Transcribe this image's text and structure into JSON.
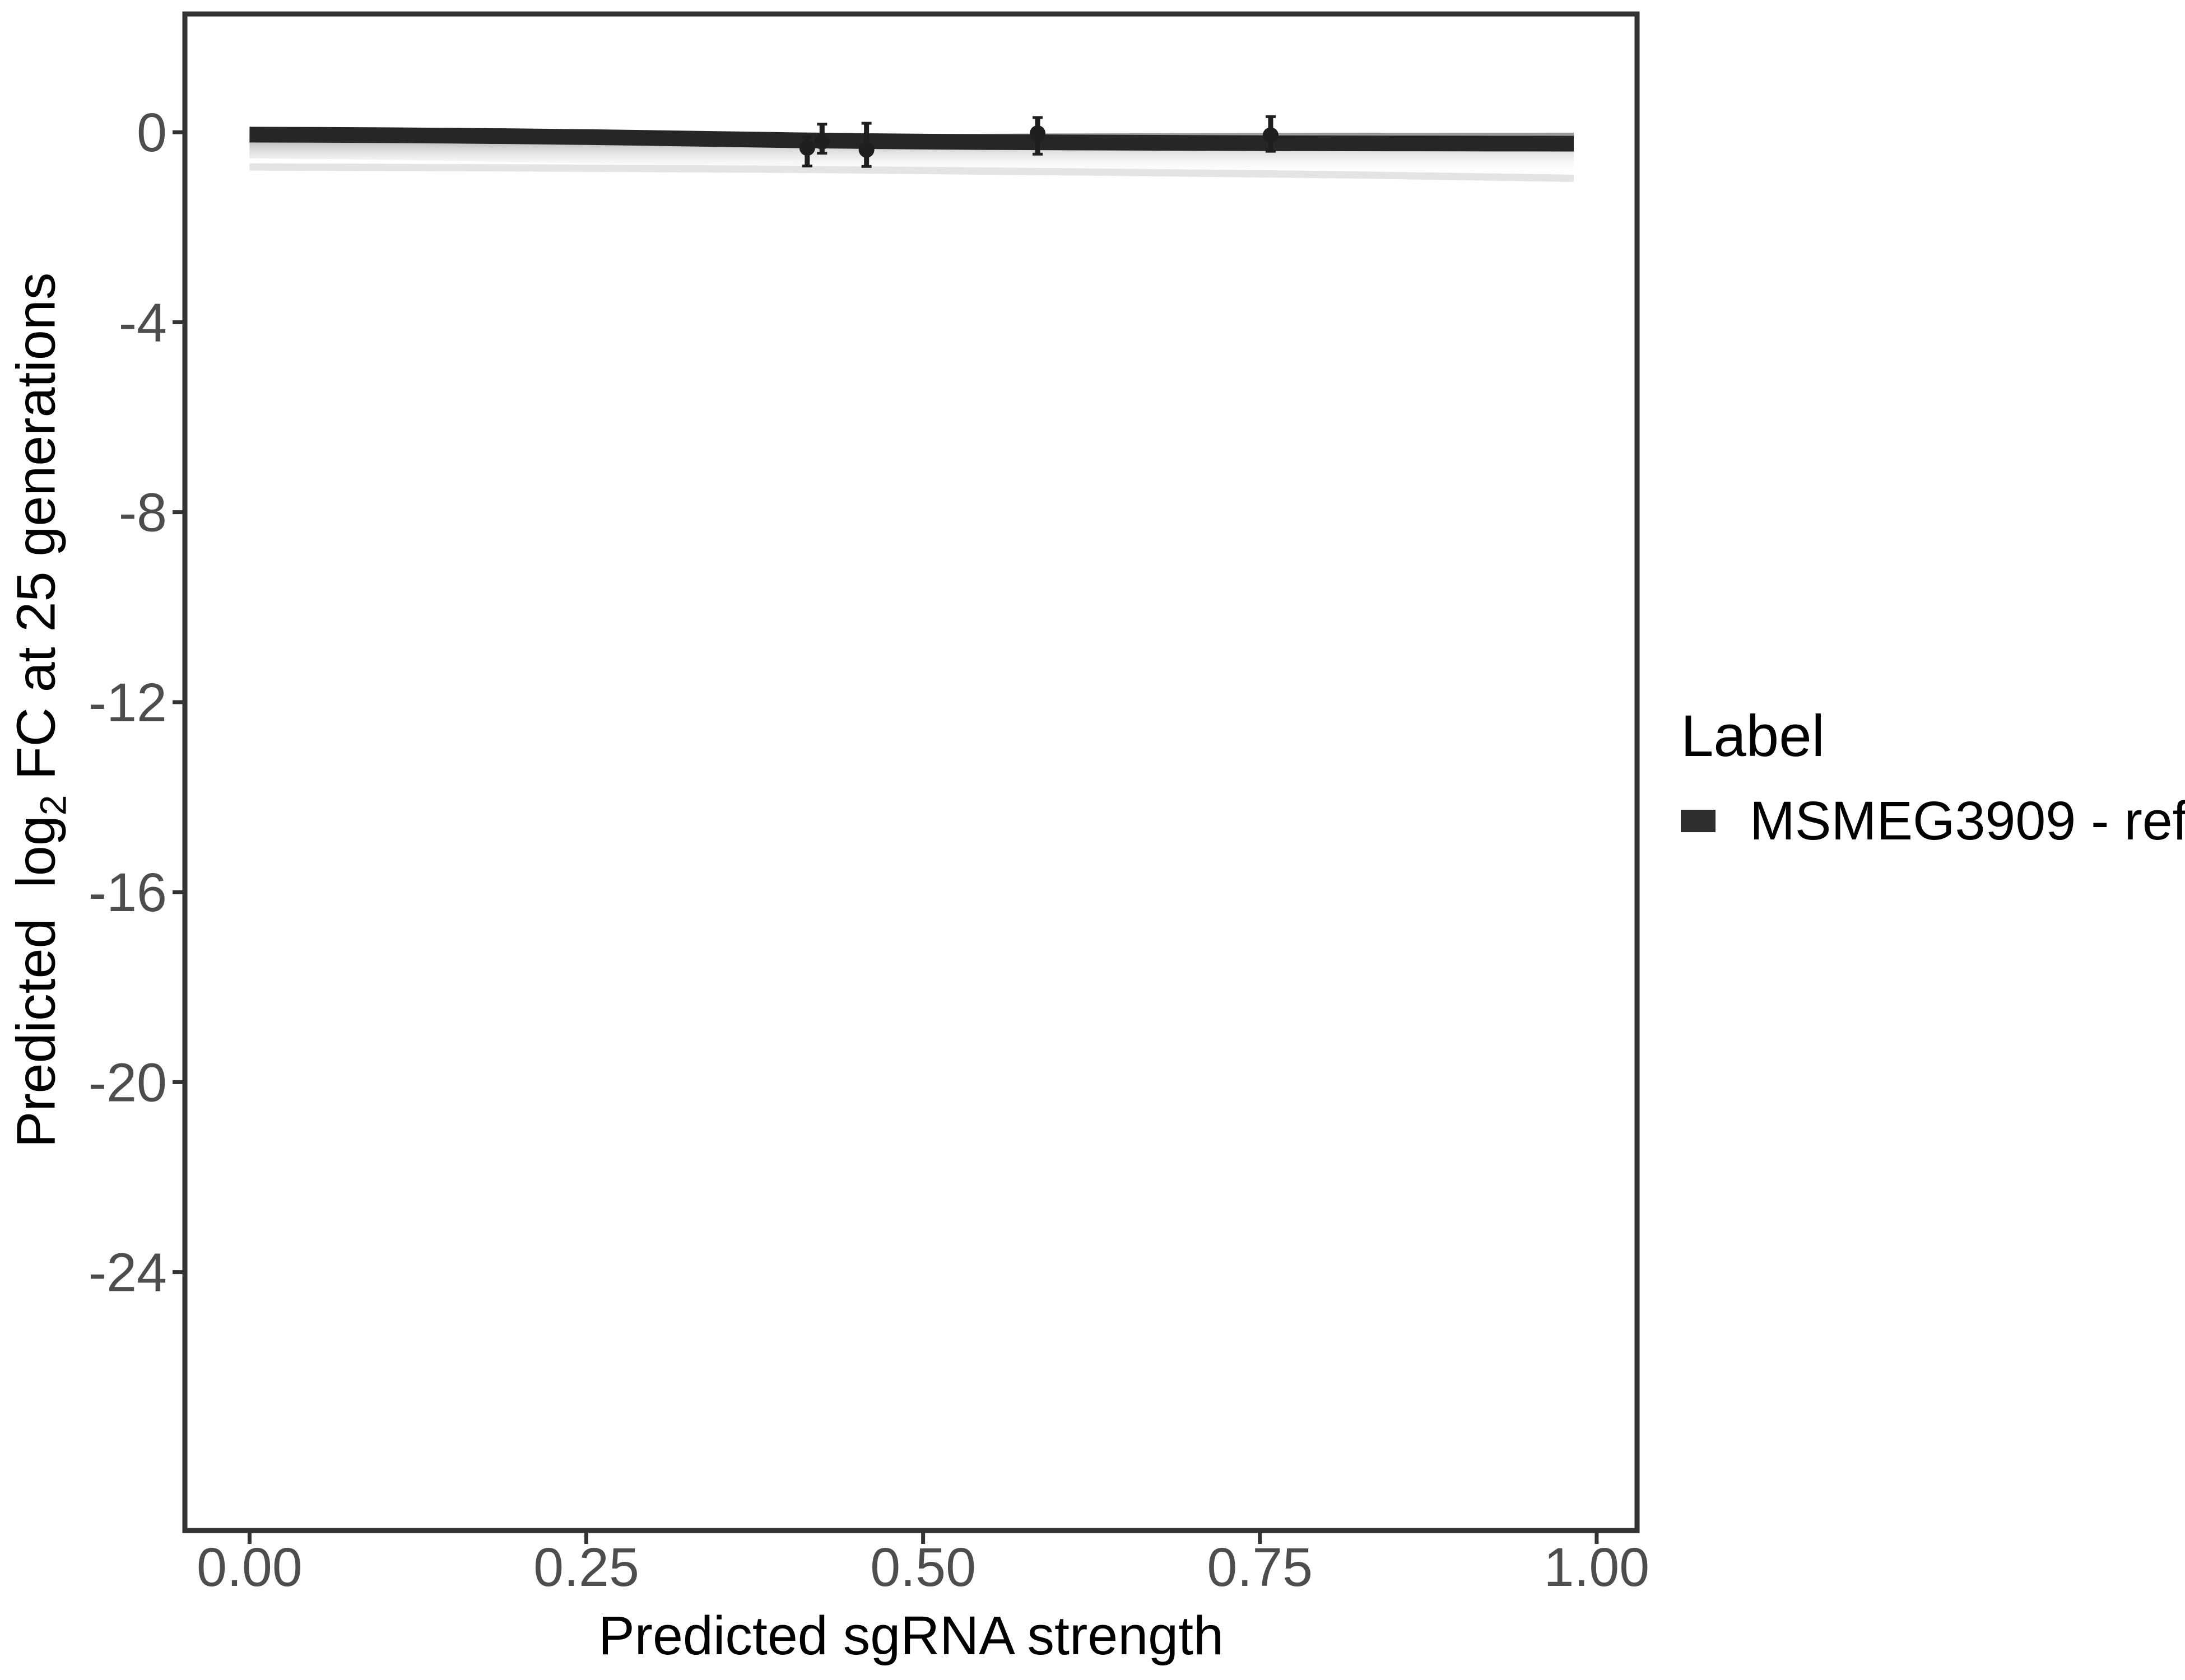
{
  "figure": {
    "background": "#ffffff"
  },
  "y_axis": {
    "title": {
      "pre": "Predicted  log",
      "sub": "2",
      "post": " FC at 25 generations"
    },
    "ticks": [
      {
        "label": "0",
        "value": 0
      },
      {
        "label": "-4",
        "value": -4
      },
      {
        "label": "-8",
        "value": -8
      },
      {
        "label": "-12",
        "value": -12
      },
      {
        "label": "-16",
        "value": -16
      },
      {
        "label": "-20",
        "value": -20
      },
      {
        "label": "-24",
        "value": -24
      }
    ]
  },
  "x_axis": {
    "title": "Predicted sgRNA strength",
    "ticks": [
      {
        "label": "0.00",
        "value": 0.0
      },
      {
        "label": "0.25",
        "value": 0.25
      },
      {
        "label": "0.50",
        "value": 0.5
      },
      {
        "label": "0.75",
        "value": 0.75
      },
      {
        "label": "1.00",
        "value": 1.0
      }
    ]
  },
  "legend": {
    "title": "Label",
    "items": [
      {
        "label": "MSMEG3909 - ref",
        "color": "#2e2e2e"
      }
    ]
  },
  "chart_data": {
    "type": "line",
    "title": "",
    "xlabel": "Predicted sgRNA strength",
    "ylabel": "Predicted log2 FC at 25 generations",
    "xlim": [
      -0.048,
      1.03
    ],
    "ylim": [
      2.49,
      -29.44
    ],
    "grid": false,
    "legend_position": "right",
    "axis_color": "#333333",
    "tick_label_color": "#4d4d4d",
    "series": [
      {
        "name": "MSMEG3909 - ref",
        "color": "#262626",
        "stroke_width": 28,
        "points": [
          [
            0.0,
            -0.05
          ],
          [
            0.05,
            -0.055
          ],
          [
            0.1,
            -0.062
          ],
          [
            0.15,
            -0.072
          ],
          [
            0.2,
            -0.085
          ],
          [
            0.25,
            -0.102
          ],
          [
            0.3,
            -0.122
          ],
          [
            0.35,
            -0.144
          ],
          [
            0.4,
            -0.165
          ],
          [
            0.45,
            -0.183
          ],
          [
            0.5,
            -0.197
          ],
          [
            0.55,
            -0.207
          ],
          [
            0.6,
            -0.214
          ],
          [
            0.65,
            -0.22
          ],
          [
            0.7,
            -0.225
          ],
          [
            0.75,
            -0.229
          ],
          [
            0.8,
            -0.232
          ],
          [
            0.85,
            -0.235
          ],
          [
            0.9,
            -0.237
          ],
          [
            0.95,
            -0.239
          ],
          [
            0.983,
            -0.24
          ]
        ]
      }
    ],
    "ribbon": {
      "upper": [
        [
          0.0,
          -0.04
        ],
        [
          0.1,
          -0.05
        ],
        [
          0.2,
          -0.058
        ],
        [
          0.3,
          -0.068
        ],
        [
          0.4,
          -0.075
        ],
        [
          0.5,
          -0.04
        ],
        [
          0.6,
          -0.025
        ],
        [
          0.7,
          -0.018
        ],
        [
          0.8,
          -0.013
        ],
        [
          0.9,
          -0.01
        ],
        [
          0.983,
          -0.008
        ]
      ],
      "lower": [
        [
          0.0,
          -0.55
        ],
        [
          0.1,
          -0.58
        ],
        [
          0.2,
          -0.63
        ],
        [
          0.3,
          -0.68
        ],
        [
          0.4,
          -0.73
        ],
        [
          0.5,
          -0.76
        ],
        [
          0.6,
          -0.79
        ],
        [
          0.7,
          -0.82
        ],
        [
          0.8,
          -0.86
        ],
        [
          0.9,
          -0.9
        ],
        [
          0.983,
          -0.94
        ]
      ],
      "gradient": [
        {
          "offset": 0,
          "color": "#8a8a8a",
          "opacity": 0.92
        },
        {
          "offset": 0.3,
          "color": "#c2c2c2",
          "opacity": 0.8
        },
        {
          "offset": 0.62,
          "color": "#e9e9e9",
          "opacity": 0.55
        },
        {
          "offset": 1,
          "color": "#ffffff",
          "opacity": 0
        }
      ]
    },
    "quantile_line": {
      "color": "#e4e4e4",
      "stroke_width": 13,
      "points": [
        [
          0.0,
          -0.73
        ],
        [
          0.2,
          -0.75
        ],
        [
          0.4,
          -0.78
        ],
        [
          0.6,
          -0.83
        ],
        [
          0.8,
          -0.89
        ],
        [
          0.983,
          -0.97
        ]
      ]
    },
    "pointranges": {
      "color": "#1f1f1f",
      "points": [
        {
          "x": 0.414,
          "y": -0.33,
          "ymin": -0.71,
          "ymax": -0.1
        },
        {
          "x": 0.425,
          "y": -0.2,
          "ymin": -0.44,
          "ymax": 0.17
        },
        {
          "x": 0.458,
          "y": -0.37,
          "ymin": -0.72,
          "ymax": 0.19
        },
        {
          "x": 0.585,
          "y": -0.02,
          "ymin": -0.46,
          "ymax": 0.31
        },
        {
          "x": 0.758,
          "y": -0.06,
          "ymin": -0.4,
          "ymax": 0.33
        }
      ]
    }
  }
}
